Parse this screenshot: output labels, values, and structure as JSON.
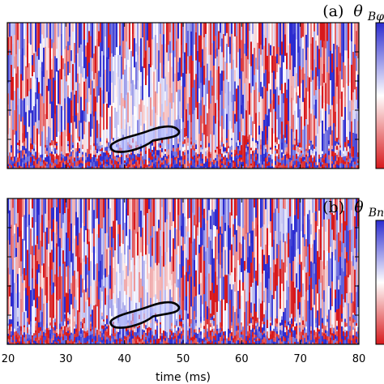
{
  "chart_data": [
    {
      "type": "heatmap",
      "panel_label": "(a)",
      "symbol": "θ",
      "subscript": "Bφ",
      "xlim": [
        20,
        80
      ],
      "colormap": [
        "#d7191c",
        "#ffffff",
        "#2c2cd0"
      ],
      "annotation": "contour",
      "contour_x_range": [
        38,
        49
      ]
    },
    {
      "type": "heatmap",
      "panel_label": "(b)",
      "symbol": "θ",
      "subscript": "Bn",
      "xlim": [
        20,
        80
      ],
      "colormap": [
        "#d7191c",
        "#ffffff",
        "#2c2cd0"
      ],
      "annotation": "contour",
      "contour_x_range": [
        38,
        49
      ]
    }
  ],
  "xaxis": {
    "label": "time (ms)",
    "ticks": [
      20,
      30,
      40,
      50,
      60,
      70,
      80
    ],
    "tick_labels": [
      "20",
      "30",
      "40",
      "50",
      "60",
      "70",
      "80"
    ]
  }
}
